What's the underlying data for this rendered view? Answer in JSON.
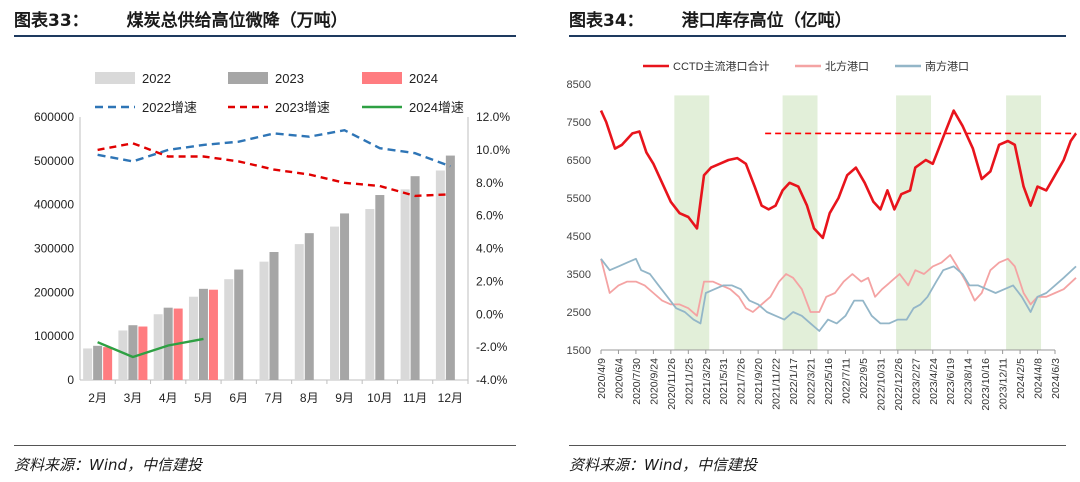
{
  "chart_data": [
    {
      "type": "bar",
      "title_num": "图表33：",
      "title": "煤炭总供给高位微降（万吨）",
      "source": "资料来源：Wind，中信建投",
      "categories": [
        "2月",
        "3月",
        "4月",
        "5月",
        "6月",
        "7月",
        "8月",
        "9月",
        "10月",
        "11月",
        "12月"
      ],
      "ylim": [
        0,
        600000
      ],
      "yticks": [
        "0",
        "100000",
        "200000",
        "300000",
        "400000",
        "500000",
        "600000"
      ],
      "y2lim": [
        -4,
        12
      ],
      "y2ticks": [
        "-4.0%",
        "-2.0%",
        "0.0%",
        "2.0%",
        "4.0%",
        "6.0%",
        "8.0%",
        "10.0%",
        "12.0%"
      ],
      "series": [
        {
          "name": "2022",
          "type": "bar",
          "color": "#d9d9d9",
          "values": [
            72000,
            113000,
            150000,
            190000,
            230000,
            270000,
            310000,
            350000,
            390000,
            435000,
            478000
          ]
        },
        {
          "name": "2023",
          "type": "bar",
          "color": "#a6a6a6",
          "values": [
            78000,
            125000,
            165000,
            208000,
            252000,
            292000,
            335000,
            380000,
            422000,
            465000,
            512000
          ]
        },
        {
          "name": "2024",
          "type": "bar",
          "color": "#ff7c80",
          "values": [
            75000,
            122000,
            163000,
            206000,
            null,
            null,
            null,
            null,
            null,
            null,
            null
          ]
        },
        {
          "name": "2022增速",
          "type": "line",
          "axis": "right",
          "color": "#2e75b6",
          "dash": "8,5",
          "values": [
            9.7,
            9.3,
            10.0,
            10.3,
            10.5,
            11.0,
            10.8,
            11.2,
            10.1,
            9.8,
            9.0
          ]
        },
        {
          "name": "2023增速",
          "type": "line",
          "axis": "right",
          "color": "#e00000",
          "dash": "7,5",
          "values": [
            10.0,
            10.4,
            9.6,
            9.6,
            9.3,
            8.8,
            8.5,
            8.0,
            7.8,
            7.2,
            7.3
          ]
        },
        {
          "name": "2024增速",
          "type": "line",
          "axis": "right",
          "color": "#2ea043",
          "dash": "",
          "values": [
            -1.7,
            -2.6,
            -1.9,
            -1.5,
            null,
            null,
            null,
            null,
            null,
            null,
            null
          ]
        }
      ]
    },
    {
      "type": "line",
      "title_num": "图表34：",
      "title": "港口库存高位（亿吨）",
      "source": "资料来源：Wind，中信建投",
      "x": [
        "2020/4/9",
        "2020/6/4",
        "2020/7/30",
        "2020/9/24",
        "2020/11/26",
        "2021/1/25",
        "2021/3/29",
        "2021/5/31",
        "2021/7/26",
        "2021/9/20",
        "2021/11/22",
        "2022/1/17",
        "2022/3/21",
        "2022/5/16",
        "2022/7/11",
        "2022/9/5",
        "2022/10/31",
        "2022/12/26",
        "2023/2/27",
        "2023/4/24",
        "2023/6/19",
        "2023/8/14",
        "2023/10/16",
        "2023/12/11",
        "2024/2/5",
        "2024/4/8",
        "2024/6/3"
      ],
      "ylim": [
        1500,
        8500
      ],
      "yticks": [
        "1500",
        "2500",
        "3500",
        "4500",
        "5500",
        "6500",
        "7500",
        "8500"
      ],
      "shaded_ranges": [
        [
          4.2,
          6.2
        ],
        [
          10.4,
          12.4
        ],
        [
          16.9,
          18.9
        ],
        [
          23.2,
          25.2
        ]
      ],
      "reference_line": {
        "value": 7200,
        "color": "#ff0000",
        "from": 9.4,
        "to": 27.2
      },
      "series": [
        {
          "name": "CCTD主流港口合计",
          "color": "#e8141c",
          "width": 2.6,
          "values": [
            [
              0,
              7800
            ],
            [
              0.3,
              7500
            ],
            [
              0.8,
              6800
            ],
            [
              1.2,
              6900
            ],
            [
              1.8,
              7200
            ],
            [
              2.2,
              7250
            ],
            [
              2.6,
              6700
            ],
            [
              3.0,
              6400
            ],
            [
              3.5,
              5900
            ],
            [
              4.0,
              5400
            ],
            [
              4.5,
              5100
            ],
            [
              5.0,
              5000
            ],
            [
              5.5,
              4700
            ],
            [
              5.9,
              6100
            ],
            [
              6.3,
              6300
            ],
            [
              6.8,
              6400
            ],
            [
              7.3,
              6500
            ],
            [
              7.8,
              6550
            ],
            [
              8.3,
              6400
            ],
            [
              8.8,
              5800
            ],
            [
              9.2,
              5300
            ],
            [
              9.6,
              5200
            ],
            [
              10.0,
              5300
            ],
            [
              10.4,
              5700
            ],
            [
              10.8,
              5900
            ],
            [
              11.3,
              5800
            ],
            [
              11.8,
              5300
            ],
            [
              12.2,
              4700
            ],
            [
              12.7,
              4450
            ],
            [
              13.1,
              5100
            ],
            [
              13.6,
              5500
            ],
            [
              14.1,
              6100
            ],
            [
              14.6,
              6300
            ],
            [
              15.1,
              5900
            ],
            [
              15.6,
              5400
            ],
            [
              16.0,
              5200
            ],
            [
              16.4,
              5700
            ],
            [
              16.8,
              5200
            ],
            [
              17.2,
              5600
            ],
            [
              17.7,
              5700
            ],
            [
              18.0,
              6300
            ],
            [
              18.6,
              6500
            ],
            [
              19.0,
              6400
            ],
            [
              19.6,
              7100
            ],
            [
              20.2,
              7800
            ],
            [
              20.7,
              7400
            ],
            [
              21.3,
              6800
            ],
            [
              21.8,
              6000
            ],
            [
              22.3,
              6200
            ],
            [
              22.8,
              6900
            ],
            [
              23.3,
              7000
            ],
            [
              23.7,
              6900
            ],
            [
              24.2,
              5800
            ],
            [
              24.6,
              5300
            ],
            [
              25.0,
              5800
            ],
            [
              25.5,
              5700
            ],
            [
              26.0,
              6100
            ],
            [
              26.5,
              6500
            ],
            [
              26.9,
              7000
            ],
            [
              27.2,
              7200
            ]
          ]
        },
        {
          "name": "北方港口",
          "color": "#f4a3a3",
          "width": 1.8,
          "values": [
            [
              0,
              3900
            ],
            [
              0.5,
              3000
            ],
            [
              1.0,
              3200
            ],
            [
              1.5,
              3300
            ],
            [
              2.0,
              3300
            ],
            [
              2.5,
              3200
            ],
            [
              3.0,
              3000
            ],
            [
              3.5,
              2800
            ],
            [
              4.0,
              2700
            ],
            [
              4.5,
              2700
            ],
            [
              5.0,
              2600
            ],
            [
              5.5,
              2400
            ],
            [
              5.9,
              3300
            ],
            [
              6.4,
              3300
            ],
            [
              6.9,
              3200
            ],
            [
              7.4,
              3100
            ],
            [
              7.9,
              2900
            ],
            [
              8.3,
              2600
            ],
            [
              8.7,
              2500
            ],
            [
              9.2,
              2700
            ],
            [
              9.7,
              2900
            ],
            [
              10.2,
              3300
            ],
            [
              10.6,
              3500
            ],
            [
              11.0,
              3400
            ],
            [
              11.5,
              3100
            ],
            [
              12.0,
              2500
            ],
            [
              12.5,
              2500
            ],
            [
              12.9,
              2900
            ],
            [
              13.4,
              3000
            ],
            [
              13.9,
              3300
            ],
            [
              14.4,
              3500
            ],
            [
              14.9,
              3300
            ],
            [
              15.3,
              3400
            ],
            [
              15.7,
              2900
            ],
            [
              16.1,
              3100
            ],
            [
              16.6,
              3300
            ],
            [
              17.1,
              3500
            ],
            [
              17.6,
              3200
            ],
            [
              18.0,
              3600
            ],
            [
              18.5,
              3500
            ],
            [
              19.0,
              3700
            ],
            [
              19.5,
              3800
            ],
            [
              20.0,
              4000
            ],
            [
              20.4,
              3700
            ],
            [
              20.9,
              3300
            ],
            [
              21.4,
              2800
            ],
            [
              21.8,
              3000
            ],
            [
              22.3,
              3600
            ],
            [
              22.8,
              3800
            ],
            [
              23.3,
              3900
            ],
            [
              23.7,
              3700
            ],
            [
              24.2,
              3000
            ],
            [
              24.6,
              2700
            ],
            [
              25.0,
              2900
            ],
            [
              25.5,
              2900
            ],
            [
              26.0,
              3000
            ],
            [
              26.5,
              3100
            ],
            [
              27.2,
              3400
            ]
          ]
        },
        {
          "name": "南方港口",
          "color": "#93b6c8",
          "width": 1.8,
          "values": [
            [
              0,
              3900
            ],
            [
              0.5,
              3600
            ],
            [
              1.0,
              3700
            ],
            [
              1.5,
              3800
            ],
            [
              2.0,
              3900
            ],
            [
              2.3,
              3600
            ],
            [
              2.8,
              3500
            ],
            [
              3.3,
              3200
            ],
            [
              3.8,
              2900
            ],
            [
              4.3,
              2600
            ],
            [
              4.8,
              2500
            ],
            [
              5.3,
              2300
            ],
            [
              5.7,
              2200
            ],
            [
              6.0,
              3000
            ],
            [
              6.5,
              3100
            ],
            [
              7.0,
              3200
            ],
            [
              7.5,
              3200
            ],
            [
              8.0,
              3100
            ],
            [
              8.5,
              2800
            ],
            [
              9.0,
              2700
            ],
            [
              9.5,
              2500
            ],
            [
              10.0,
              2400
            ],
            [
              10.5,
              2300
            ],
            [
              11.0,
              2500
            ],
            [
              11.5,
              2400
            ],
            [
              12.0,
              2200
            ],
            [
              12.5,
              2000
            ],
            [
              13.0,
              2300
            ],
            [
              13.5,
              2200
            ],
            [
              14.0,
              2400
            ],
            [
              14.5,
              2800
            ],
            [
              15.0,
              2800
            ],
            [
              15.5,
              2400
            ],
            [
              16.0,
              2200
            ],
            [
              16.5,
              2200
            ],
            [
              17.0,
              2300
            ],
            [
              17.5,
              2300
            ],
            [
              17.9,
              2600
            ],
            [
              18.3,
              2700
            ],
            [
              18.7,
              2900
            ],
            [
              19.2,
              3300
            ],
            [
              19.6,
              3600
            ],
            [
              20.2,
              3700
            ],
            [
              20.7,
              3500
            ],
            [
              21.1,
              3200
            ],
            [
              21.6,
              3200
            ],
            [
              22.1,
              3100
            ],
            [
              22.6,
              3000
            ],
            [
              23.1,
              3100
            ],
            [
              23.6,
              3200
            ],
            [
              24.1,
              2900
            ],
            [
              24.6,
              2500
            ],
            [
              25.0,
              2900
            ],
            [
              25.5,
              3000
            ],
            [
              26.0,
              3200
            ],
            [
              26.5,
              3400
            ],
            [
              27.2,
              3700
            ]
          ]
        }
      ]
    }
  ]
}
